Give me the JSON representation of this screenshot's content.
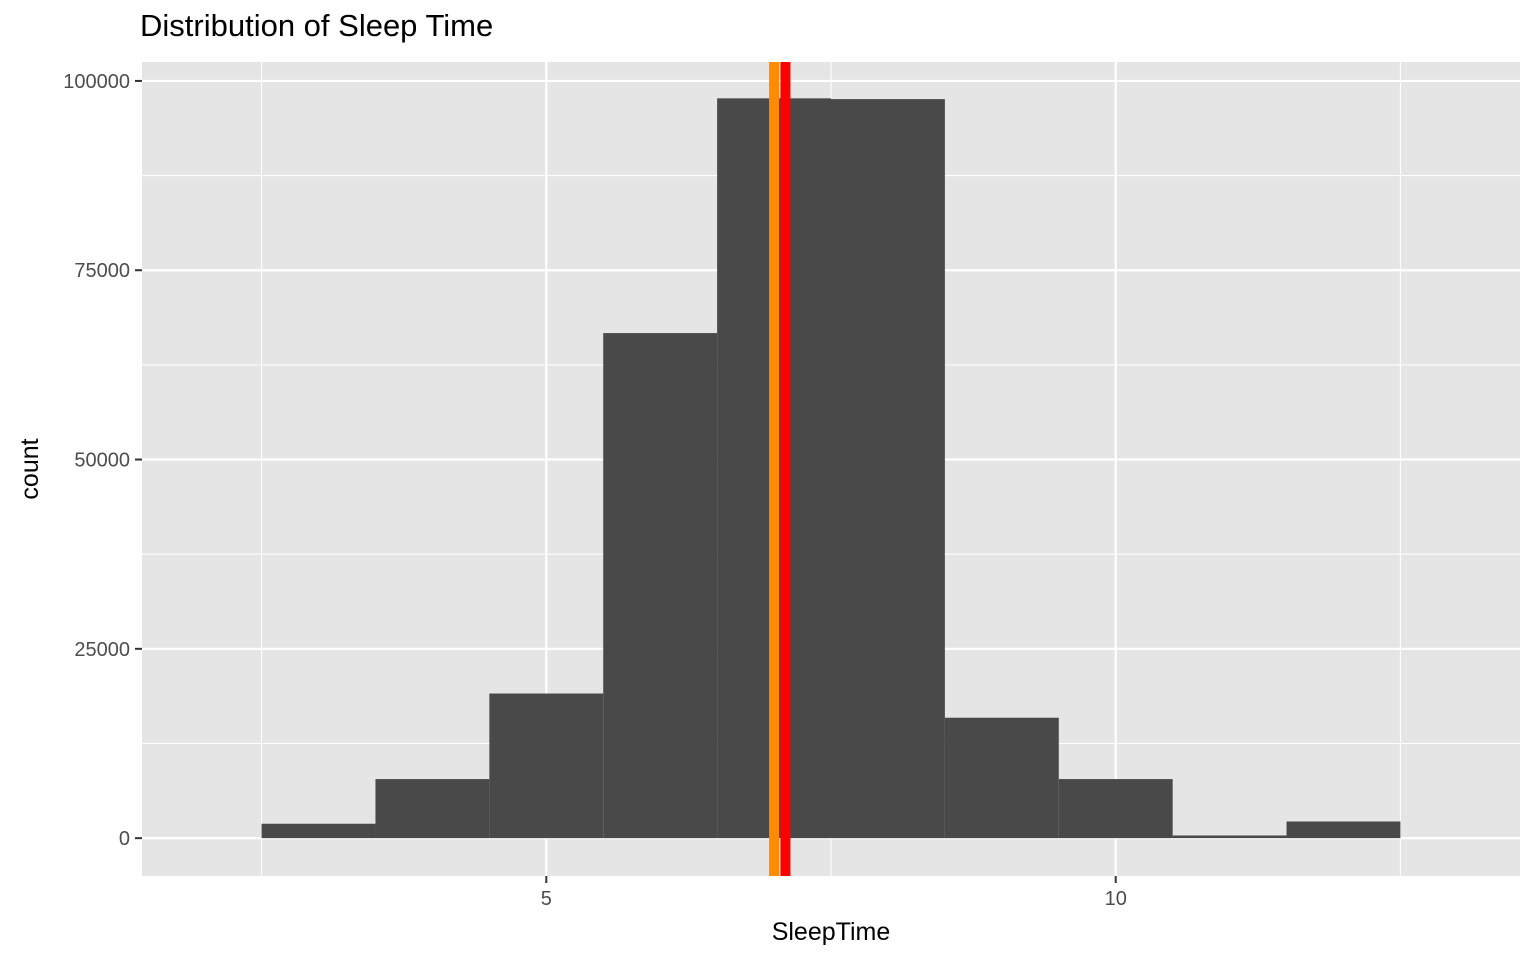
{
  "chart_data": {
    "type": "histogram",
    "title": "Distribution of Sleep Time",
    "xlabel": "SleepTime",
    "ylabel": "count",
    "xlim": [
      1.45,
      13.55
    ],
    "ylim": [
      -5000,
      102500
    ],
    "x_ticks": [
      5,
      10
    ],
    "x_tick_labels": [
      "5",
      "10"
    ],
    "x_minor_gridlines": [
      2.5,
      7.5,
      12.5
    ],
    "y_ticks": [
      0,
      25000,
      50000,
      75000,
      100000
    ],
    "y_tick_labels": [
      "0",
      "25000",
      "50000",
      "75000",
      "100000"
    ],
    "grid": true,
    "bin_width": 1,
    "bars": [
      {
        "x_start": 2.5,
        "x_end": 3.5,
        "count": 1900
      },
      {
        "x_start": 3.5,
        "x_end": 4.5,
        "count": 7800
      },
      {
        "x_start": 4.5,
        "x_end": 5.5,
        "count": 19100
      },
      {
        "x_start": 5.5,
        "x_end": 6.5,
        "count": 66700
      },
      {
        "x_start": 6.5,
        "x_end": 7.5,
        "count": 97700
      },
      {
        "x_start": 7.5,
        "x_end": 8.5,
        "count": 97600
      },
      {
        "x_start": 8.5,
        "x_end": 9.5,
        "count": 15900
      },
      {
        "x_start": 9.5,
        "x_end": 10.5,
        "count": 7800
      },
      {
        "x_start": 10.5,
        "x_end": 11.5,
        "count": 350
      },
      {
        "x_start": 11.5,
        "x_end": 12.5,
        "count": 2200
      }
    ],
    "vlines": [
      {
        "x": 7.0,
        "color": "#FF8C00"
      },
      {
        "x": 7.1,
        "color": "#FF0000"
      }
    ],
    "colors": {
      "panel_background": "#E5E5E5",
      "grid": "#FFFFFF",
      "bar_fill": "#494949"
    }
  }
}
